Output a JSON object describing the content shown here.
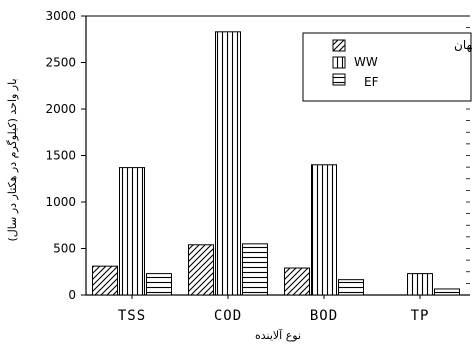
{
  "chart_data": {
    "type": "bar",
    "title": "",
    "xlabel": "نوع آلاینده",
    "ylabel": "بار واحد (کیلوگرم در هکتار در سال)",
    "categories": [
      "TSS",
      "COD",
      "BOD",
      "TP"
    ],
    "ylim": [
      0,
      3000
    ],
    "yticks": [
      0,
      500,
      1000,
      1500,
      2000,
      2500,
      3000
    ],
    "grid": false,
    "legend_position": "top-right",
    "series": [
      {
        "name": "رواناب شهری اصفهان",
        "pattern": "diagonal-hatch",
        "values": [
          310,
          540,
          290,
          null
        ]
      },
      {
        "name": "WW",
        "pattern": "vertical-hatch",
        "values": [
          1370,
          2830,
          1400,
          230
        ]
      },
      {
        "name": "EF",
        "pattern": "horizontal-hatch",
        "values": [
          230,
          550,
          165,
          65
        ]
      }
    ]
  }
}
